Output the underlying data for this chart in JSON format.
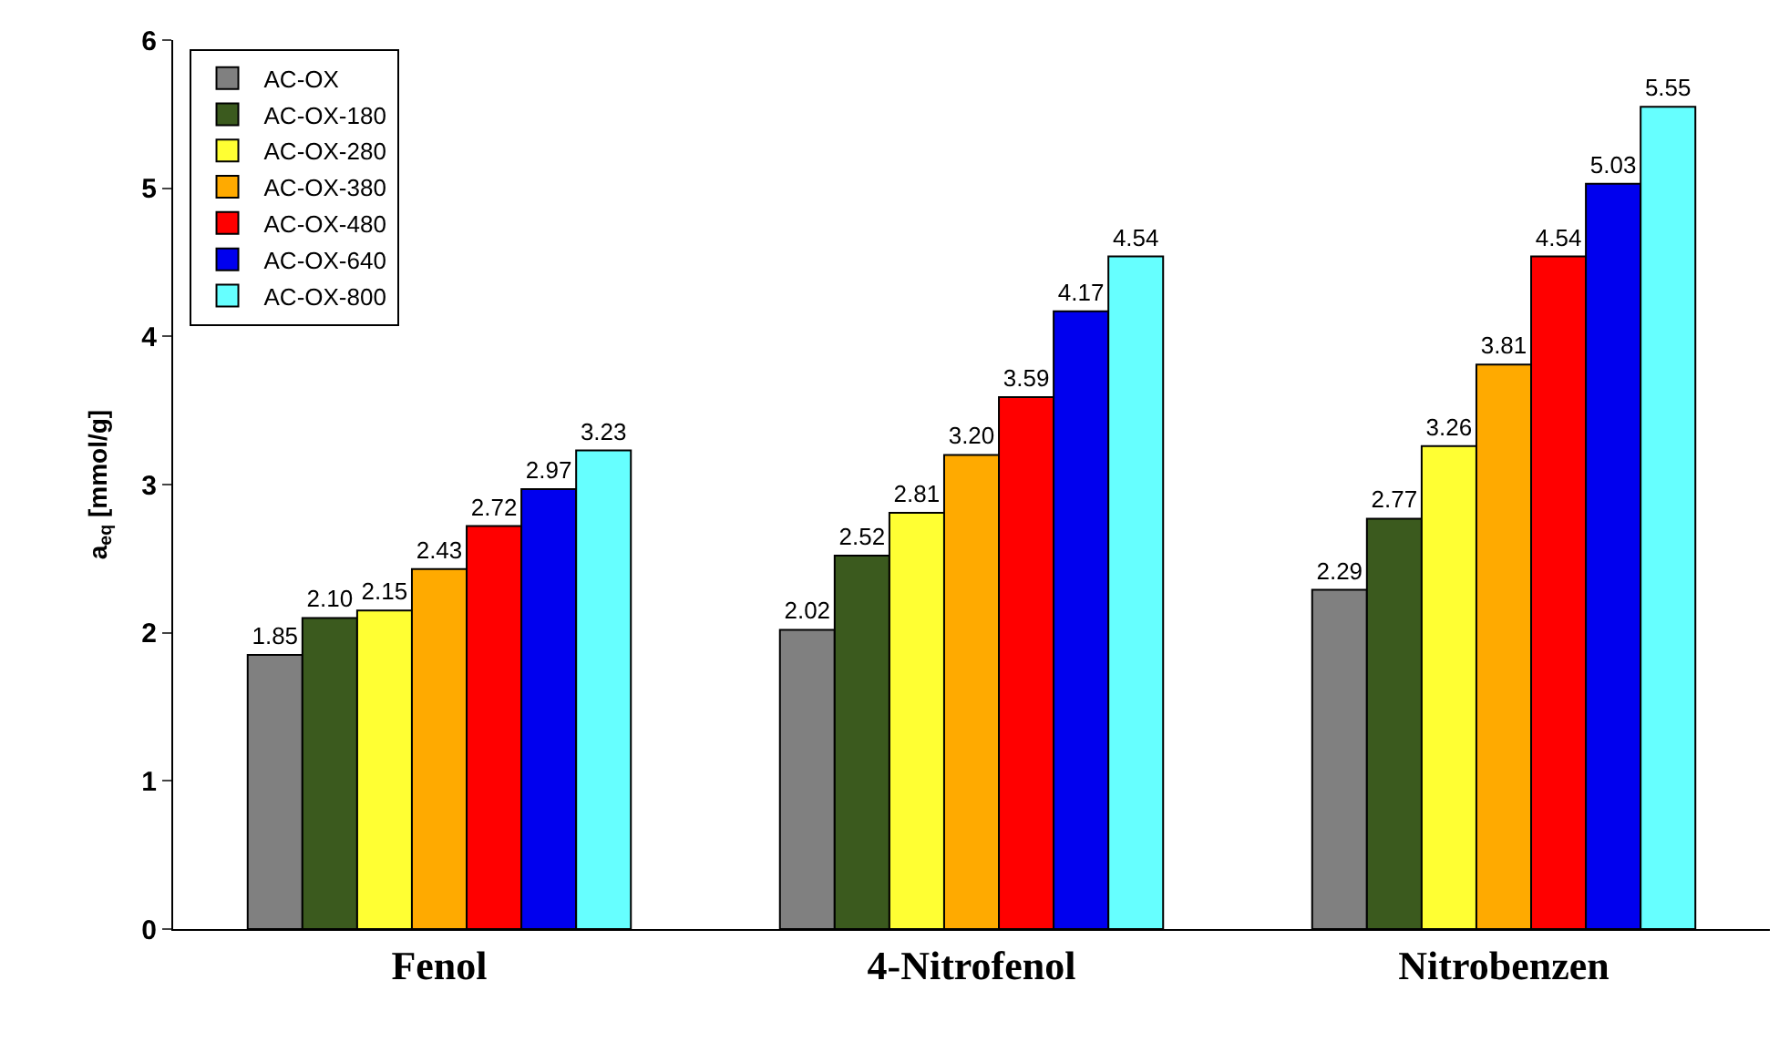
{
  "chart_data": {
    "type": "bar",
    "ylabel": "a$_{eq}$ [mmol/g]",
    "categories": [
      "Fenol",
      "4-Nitrofenol",
      "Nitrobenzen"
    ],
    "ylim": [
      0,
      6
    ],
    "yticks": [
      0,
      1,
      2,
      3,
      4,
      5,
      6
    ],
    "legend": "top left",
    "series": [
      {
        "name": "AC-OX",
        "color": "#808080",
        "values": [
          1.85,
          2.02,
          2.29
        ],
        "value_labels": [
          "1.85",
          "2.02",
          "2.29"
        ]
      },
      {
        "name": "AC-OX-180",
        "color": "#3b5a1e",
        "values": [
          2.1,
          2.52,
          2.77
        ],
        "value_labels": [
          "2.10",
          "2.52",
          "2.77"
        ]
      },
      {
        "name": "AC-OX-280",
        "color": "#ffff33",
        "values": [
          2.15,
          2.81,
          3.26
        ],
        "value_labels": [
          "2.15",
          "2.81",
          "3.26"
        ]
      },
      {
        "name": "AC-OX-380",
        "color": "#ffaa00",
        "values": [
          2.43,
          3.2,
          3.81
        ],
        "value_labels": [
          "2.43",
          "3.20",
          "3.81"
        ]
      },
      {
        "name": "AC-OX-480",
        "color": "#ff0000",
        "values": [
          2.72,
          3.59,
          4.54
        ],
        "value_labels": [
          "2.72",
          "3.59",
          "4.54"
        ]
      },
      {
        "name": "AC-OX-640",
        "color": "#0000ee",
        "values": [
          2.97,
          4.17,
          5.03
        ],
        "value_labels": [
          "2.97",
          "4.17",
          "5.03"
        ]
      },
      {
        "name": "AC-OX-800",
        "color": "#66ffff",
        "values": [
          3.23,
          4.54,
          5.55
        ],
        "value_labels": [
          "3.23",
          "4.54",
          "5.55"
        ]
      }
    ]
  }
}
